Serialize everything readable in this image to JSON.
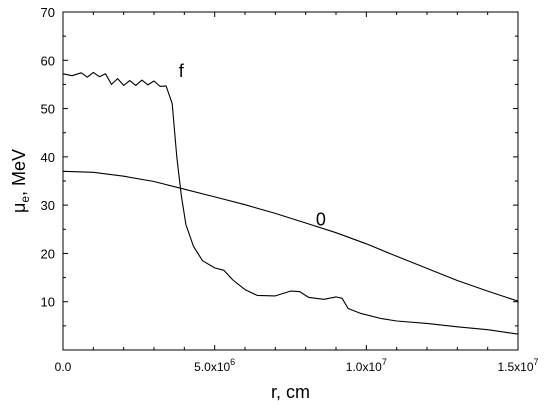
{
  "chart_data": {
    "type": "line",
    "title": "",
    "xlabel": "r, cm",
    "ylabel_main": "μ",
    "ylabel_sub": "e",
    "ylabel_tail": ", MeV",
    "xlim": [
      0,
      15000000
    ],
    "ylim": [
      0,
      70
    ],
    "grid": false,
    "legend": "none",
    "x_ticks": [
      {
        "value": 0,
        "label": "0.0"
      },
      {
        "value": 5000000,
        "label": "5.0x10",
        "exp": "6"
      },
      {
        "value": 10000000,
        "label": "1.0x10",
        "exp": "7"
      },
      {
        "value": 15000000,
        "label": "1.5x10",
        "exp": "7"
      }
    ],
    "y_ticks": [
      10,
      20,
      30,
      40,
      50,
      60,
      70
    ],
    "series": [
      {
        "name": "0",
        "color": "#000000",
        "points": [
          [
            0,
            37.0
          ],
          [
            1000000,
            36.8
          ],
          [
            2000000,
            36.0
          ],
          [
            3000000,
            34.9
          ],
          [
            4000000,
            33.3
          ],
          [
            5000000,
            31.7
          ],
          [
            6000000,
            30.1
          ],
          [
            7000000,
            28.3
          ],
          [
            8000000,
            26.3
          ],
          [
            9000000,
            24.3
          ],
          [
            10000000,
            22.0
          ],
          [
            11000000,
            19.4
          ],
          [
            12000000,
            16.9
          ],
          [
            13000000,
            14.4
          ],
          [
            14000000,
            12.2
          ],
          [
            15000000,
            10.1
          ]
        ]
      },
      {
        "name": "f",
        "color": "#000000",
        "points": [
          [
            0,
            57.2
          ],
          [
            300000,
            56.8
          ],
          [
            600000,
            57.4
          ],
          [
            800000,
            56.5
          ],
          [
            1000000,
            57.5
          ],
          [
            1200000,
            56.6
          ],
          [
            1400000,
            57.2
          ],
          [
            1600000,
            55.0
          ],
          [
            1800000,
            56.2
          ],
          [
            2000000,
            54.8
          ],
          [
            2200000,
            55.8
          ],
          [
            2400000,
            54.8
          ],
          [
            2600000,
            55.9
          ],
          [
            2800000,
            54.9
          ],
          [
            3000000,
            55.7
          ],
          [
            3200000,
            54.6
          ],
          [
            3400000,
            54.7
          ],
          [
            3600000,
            51.0
          ],
          [
            3750000,
            40.0
          ],
          [
            3900000,
            32.0
          ],
          [
            4050000,
            26.0
          ],
          [
            4300000,
            21.5
          ],
          [
            4600000,
            18.5
          ],
          [
            5000000,
            17.0
          ],
          [
            5300000,
            16.5
          ],
          [
            5600000,
            14.5
          ],
          [
            6000000,
            12.5
          ],
          [
            6400000,
            11.3
          ],
          [
            7000000,
            11.2
          ],
          [
            7500000,
            12.2
          ],
          [
            7800000,
            12.1
          ],
          [
            8100000,
            10.9
          ],
          [
            8600000,
            10.5
          ],
          [
            9000000,
            11.0
          ],
          [
            9200000,
            10.7
          ],
          [
            9400000,
            8.6
          ],
          [
            9800000,
            7.6
          ],
          [
            10500000,
            6.5
          ],
          [
            11000000,
            6.0
          ],
          [
            12000000,
            5.5
          ],
          [
            13000000,
            4.8
          ],
          [
            14000000,
            4.2
          ],
          [
            15000000,
            3.3
          ]
        ]
      }
    ],
    "annotations": [
      {
        "text": "f",
        "x": 3900000,
        "y": 56.5
      },
      {
        "text": "0",
        "x": 8500000,
        "y": 25.8
      }
    ]
  }
}
